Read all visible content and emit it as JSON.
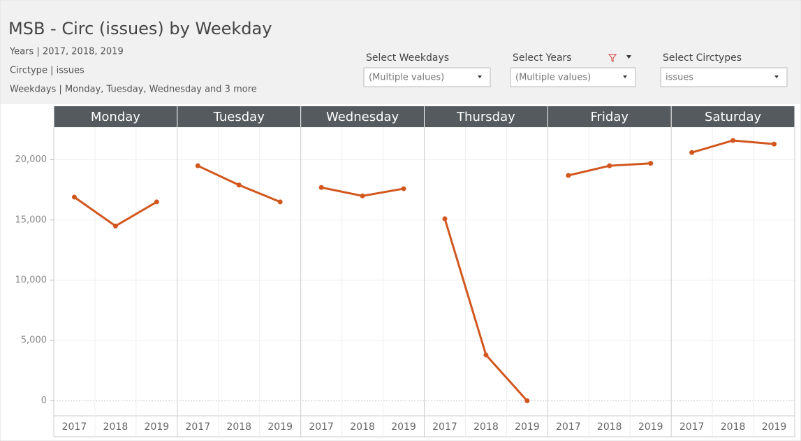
{
  "header": {
    "title": "MSB - Circ (issues) by Weekday",
    "lines": [
      "Years | 2017, 2018, 2019",
      "Circtype | issues",
      "Weekdays | Monday, Tuesday, Wednesday and 3 more"
    ]
  },
  "filters": [
    {
      "label": "Select Weekdays",
      "value": "(Multiple values)"
    },
    {
      "label": "Select Years",
      "value": "(Multiple values)"
    },
    {
      "label": "Select Circtypes",
      "value": "issues"
    }
  ],
  "chart_data": {
    "type": "line",
    "color": "#d2571e",
    "categories": [
      "2017",
      "2018",
      "2019"
    ],
    "panels": [
      {
        "name": "Monday",
        "values": [
          16900,
          14500,
          16500
        ]
      },
      {
        "name": "Tuesday",
        "values": [
          19500,
          17900,
          16500
        ]
      },
      {
        "name": "Wednesday",
        "values": [
          17700,
          17000,
          17600
        ]
      },
      {
        "name": "Thursday",
        "values": [
          15100,
          3800,
          0
        ]
      },
      {
        "name": "Friday",
        "values": [
          18700,
          19500,
          19700
        ]
      },
      {
        "name": "Saturday",
        "values": [
          20600,
          21600,
          21300
        ]
      }
    ],
    "ylim": [
      -1250,
      22700
    ],
    "yticks": [
      0,
      {
        "value": 5000,
        "label": "5,000"
      },
      {
        "value": 10000,
        "label": "10,000"
      },
      {
        "value": 15000,
        "label": "15,000"
      },
      {
        "value": 20000,
        "label": "20,000"
      }
    ]
  }
}
